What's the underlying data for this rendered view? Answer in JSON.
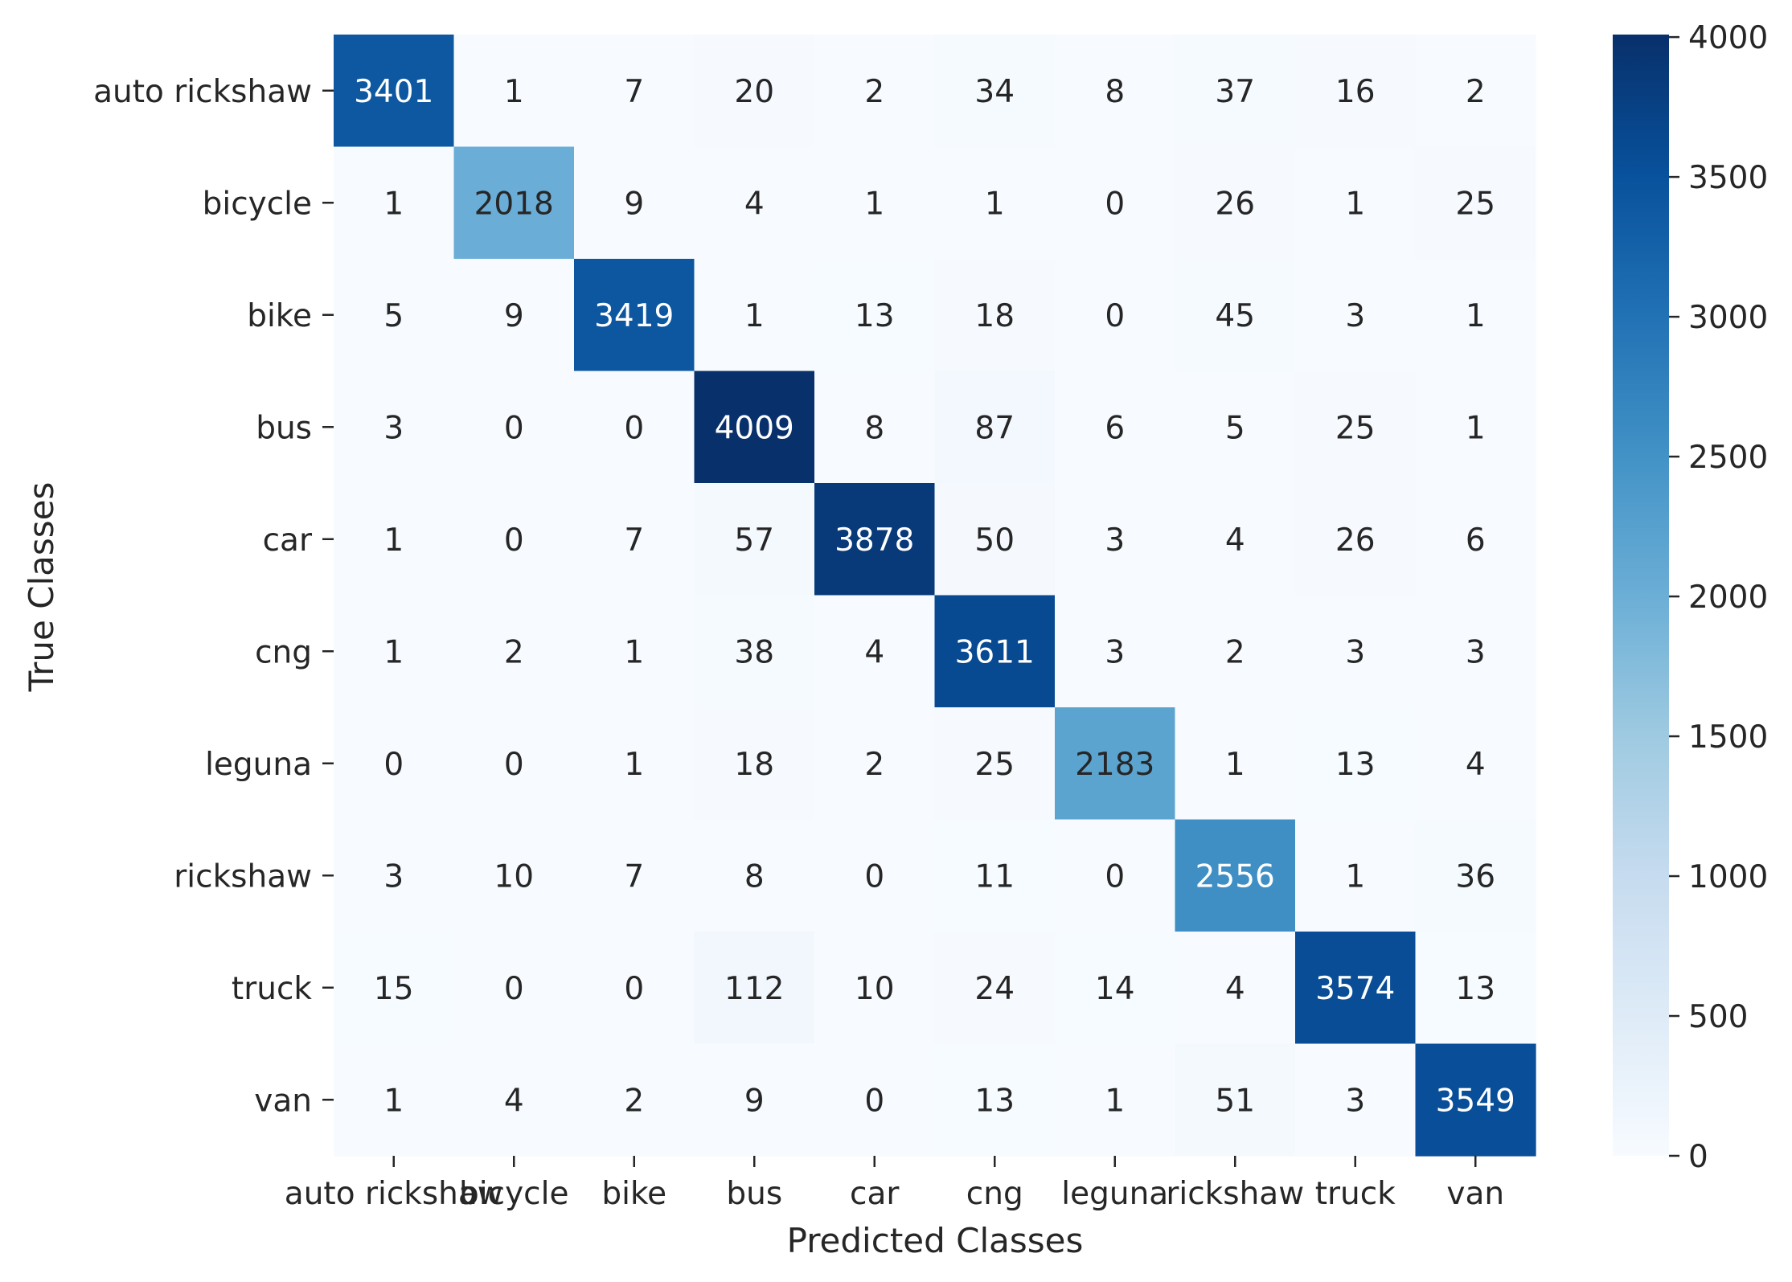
{
  "chart_data": {
    "type": "heatmap",
    "title": "",
    "xlabel": "Predicted Classes",
    "ylabel": "True Classes",
    "x_categories": [
      "auto rickshaw",
      "bicycle",
      "bike",
      "bus",
      "car",
      "cng",
      "leguna",
      "rickshaw",
      "truck",
      "van"
    ],
    "y_categories": [
      "auto rickshaw",
      "bicycle",
      "bike",
      "bus",
      "car",
      "cng",
      "leguna",
      "rickshaw",
      "truck",
      "van"
    ],
    "values": [
      [
        3401,
        1,
        7,
        20,
        2,
        34,
        8,
        37,
        16,
        2
      ],
      [
        1,
        2018,
        9,
        4,
        1,
        1,
        0,
        26,
        1,
        25
      ],
      [
        5,
        9,
        3419,
        1,
        13,
        18,
        0,
        45,
        3,
        1
      ],
      [
        3,
        0,
        0,
        4009,
        8,
        87,
        6,
        5,
        25,
        1
      ],
      [
        1,
        0,
        7,
        57,
        3878,
        50,
        3,
        4,
        26,
        6
      ],
      [
        1,
        2,
        1,
        38,
        4,
        3611,
        3,
        2,
        3,
        3
      ],
      [
        0,
        0,
        1,
        18,
        2,
        25,
        2183,
        1,
        13,
        4
      ],
      [
        3,
        10,
        7,
        8,
        0,
        11,
        0,
        2556,
        1,
        36
      ],
      [
        15,
        0,
        0,
        112,
        10,
        24,
        14,
        4,
        3574,
        13
      ],
      [
        1,
        4,
        2,
        9,
        0,
        13,
        1,
        51,
        3,
        3549
      ]
    ],
    "colorbar": {
      "min": 0,
      "max": 4009,
      "ticks": [
        0,
        500,
        1000,
        1500,
        2000,
        2500,
        3000,
        3500,
        4000
      ],
      "colormap": "Blues"
    },
    "colors": {
      "low": "#f7fbff",
      "high": "#08306b",
      "text_dark": "#262626",
      "text_light": "#ffffff"
    }
  }
}
